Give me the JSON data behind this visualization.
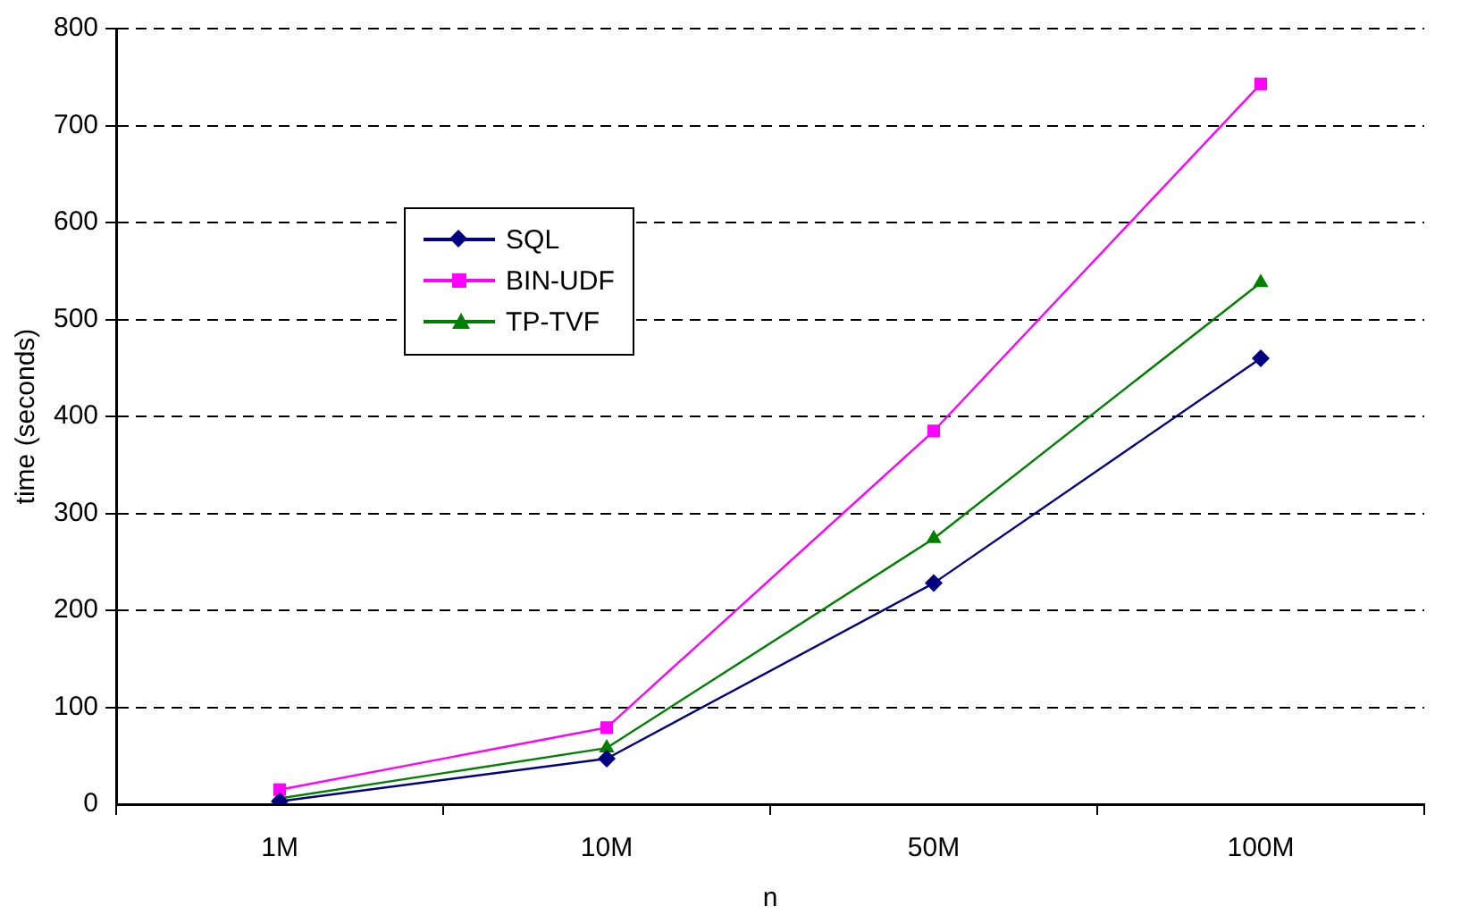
{
  "chart_data": {
    "type": "line",
    "xlabel": "n",
    "ylabel": "time (seconds)",
    "categories": [
      "1M",
      "10M",
      "50M",
      "100M"
    ],
    "series": [
      {
        "name": "SQL",
        "color": "#000080",
        "marker": "diamond",
        "values": [
          3,
          47,
          228,
          460
        ]
      },
      {
        "name": "BIN-UDF",
        "color": "#ff00ff",
        "marker": "square",
        "values": [
          15,
          79,
          385,
          743
        ]
      },
      {
        "name": "TP-TVF",
        "color": "#008000",
        "marker": "triangle",
        "values": [
          6,
          58,
          274,
          538
        ]
      }
    ],
    "ylim": [
      0,
      800
    ],
    "yticks": [
      0,
      100,
      200,
      300,
      400,
      500,
      600,
      700,
      800
    ],
    "grid": "y",
    "line_style": "solid",
    "legend": "top left"
  }
}
